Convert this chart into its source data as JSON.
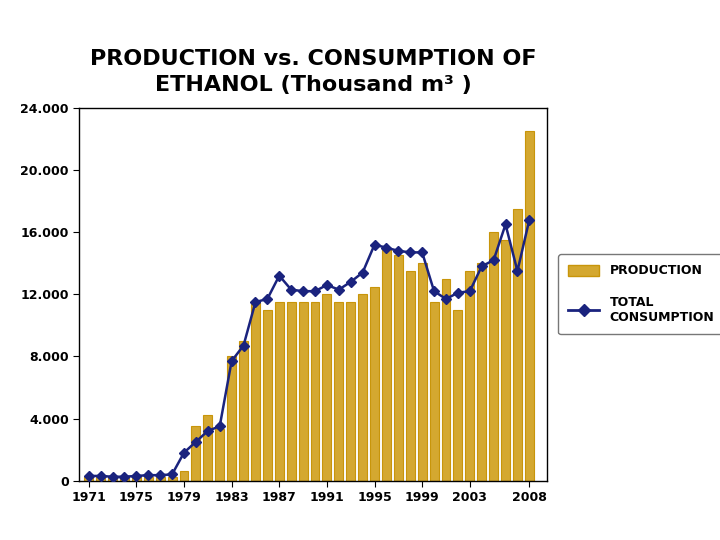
{
  "title_line1": "PRODUCTION vs. CONSUMPTION OF",
  "title_line2": "ETHANOL (Thousand m³ )",
  "years": [
    1971,
    1972,
    1973,
    1974,
    1975,
    1976,
    1977,
    1978,
    1979,
    1980,
    1981,
    1982,
    1983,
    1984,
    1985,
    1986,
    1987,
    1988,
    1989,
    1990,
    1991,
    1992,
    1993,
    1994,
    1995,
    1996,
    1997,
    1998,
    1999,
    2000,
    2001,
    2002,
    2003,
    2004,
    2005,
    2006,
    2007,
    2008
  ],
  "production": [
    200,
    200,
    200,
    200,
    200,
    200,
    200,
    200,
    600,
    3500,
    4200,
    3300,
    8000,
    9000,
    11500,
    11000,
    11500,
    11500,
    11500,
    11500,
    12000,
    11500,
    11500,
    12000,
    12500,
    15000,
    14500,
    13500,
    14000,
    11500,
    13000,
    11000,
    13500,
    14000,
    16000,
    15500,
    17500,
    22500
  ],
  "consumption": [
    300,
    300,
    250,
    250,
    300,
    350,
    350,
    400,
    1800,
    2500,
    3200,
    3500,
    7700,
    8700,
    11500,
    11700,
    13200,
    12300,
    12200,
    12200,
    12600,
    12300,
    12800,
    13400,
    15200,
    15000,
    14800,
    14700,
    14700,
    12200,
    11700,
    12100,
    12200,
    13800,
    14200,
    16500,
    13500,
    16800
  ],
  "bar_color": "#D4A830",
  "bar_edge_color": "#C8950A",
  "line_color": "#1a237e",
  "marker_color": "#1a237e",
  "background_color": "#ffffff",
  "ylim": [
    0,
    24000
  ],
  "yticks": [
    0,
    4000,
    8000,
    12000,
    16000,
    20000,
    24000
  ],
  "ytick_labels": [
    "0",
    "4.000",
    "8.000",
    "12.000",
    "16.000",
    "20.000",
    "24.000"
  ],
  "xtick_labels": [
    "1971",
    "1975",
    "1979",
    "1983",
    "1987",
    "1991",
    "1995",
    "1999",
    "2003",
    "2008"
  ],
  "legend_production": "PRODUCTION",
  "legend_consumption": "TOTAL\nCONSUMPTION",
  "title_fontsize": 16,
  "title_fontweight": "bold",
  "title_color": "#000000",
  "tick_color": "#000000",
  "tick_fontsize": 9,
  "axis_color": "#000000"
}
